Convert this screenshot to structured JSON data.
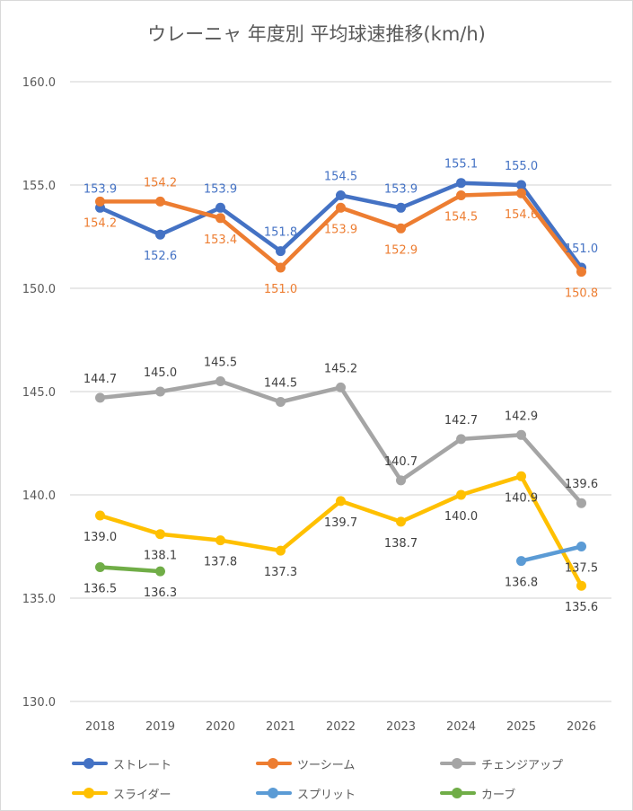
{
  "chart_data": {
    "type": "line",
    "title": "ウレーニャ 年度別 平均球速推移(km/h)",
    "xlabel": "",
    "ylabel": "",
    "categories": [
      "2018",
      "2019",
      "2020",
      "2021",
      "2022",
      "2023",
      "2024",
      "2025",
      "2026"
    ],
    "ylim": [
      130,
      160
    ],
    "yticks": [
      "130.0",
      "135.0",
      "140.0",
      "145.0",
      "150.0",
      "155.0",
      "160.0"
    ],
    "ytick_values": [
      130,
      135,
      140,
      145,
      150,
      155,
      160
    ],
    "grid": true,
    "legend_position": "bottom",
    "series": [
      {
        "name": "ストレート",
        "color": "#4472c4",
        "label_color": "#4472c4",
        "values": [
          153.9,
          152.6,
          153.9,
          151.8,
          154.5,
          153.9,
          155.1,
          155.0,
          151.0
        ],
        "labels": [
          "153.9",
          "152.6",
          "153.9",
          "151.8",
          "154.5",
          "153.9",
          "155.1",
          "155.0",
          "151.0"
        ],
        "label_pos": [
          "above",
          "below",
          "above",
          "above",
          "above",
          "above",
          "above",
          "above",
          "above"
        ]
      },
      {
        "name": "ツーシーム",
        "color": "#ed7d31",
        "label_color": "#ed7d31",
        "values": [
          154.2,
          154.2,
          153.4,
          151.0,
          153.9,
          152.9,
          154.5,
          154.6,
          150.8
        ],
        "labels": [
          "154.2",
          "154.2",
          "153.4",
          "151.0",
          "153.9",
          "152.9",
          "154.5",
          "154.6",
          "150.8"
        ],
        "label_pos": [
          "below",
          "above",
          "below",
          "below",
          "below",
          "below",
          "below",
          "below",
          "below"
        ]
      },
      {
        "name": "チェンジアップ",
        "color": "#a5a5a5",
        "label_color": "#404040",
        "values": [
          144.7,
          145.0,
          145.5,
          144.5,
          145.2,
          140.7,
          142.7,
          142.9,
          139.6
        ],
        "labels": [
          "144.7",
          "145.0",
          "145.5",
          "144.5",
          "145.2",
          "140.7",
          "142.7",
          "142.9",
          "139.6"
        ],
        "label_pos": [
          "above",
          "above",
          "above",
          "above",
          "above",
          "above",
          "above",
          "above",
          "above"
        ]
      },
      {
        "name": "スライダー",
        "color": "#ffc000",
        "label_color": "#404040",
        "values": [
          139.0,
          138.1,
          137.8,
          137.3,
          139.7,
          138.7,
          140.0,
          140.9,
          135.6
        ],
        "labels": [
          "139.0",
          "138.1",
          "137.8",
          "137.3",
          "139.7",
          "138.7",
          "140.0",
          "140.9",
          "135.6"
        ],
        "label_pos": [
          "below",
          "below",
          "below",
          "below",
          "below",
          "below",
          "below",
          "below",
          "below"
        ]
      },
      {
        "name": "スプリット",
        "color": "#5b9bd5",
        "label_color": "#404040",
        "values": [
          null,
          null,
          null,
          null,
          null,
          null,
          null,
          136.8,
          137.5
        ],
        "labels": [
          null,
          null,
          null,
          null,
          null,
          null,
          null,
          "136.8",
          "137.5"
        ],
        "label_pos": [
          null,
          null,
          null,
          null,
          null,
          null,
          null,
          "below",
          "below"
        ]
      },
      {
        "name": "カーブ",
        "color": "#70ad47",
        "label_color": "#404040",
        "values": [
          136.5,
          136.3,
          null,
          null,
          null,
          null,
          null,
          null,
          null
        ],
        "labels": [
          "136.5",
          "136.3",
          null,
          null,
          null,
          null,
          null,
          null,
          null
        ],
        "label_pos": [
          "below",
          "below",
          null,
          null,
          null,
          null,
          null,
          null,
          null
        ]
      }
    ]
  }
}
